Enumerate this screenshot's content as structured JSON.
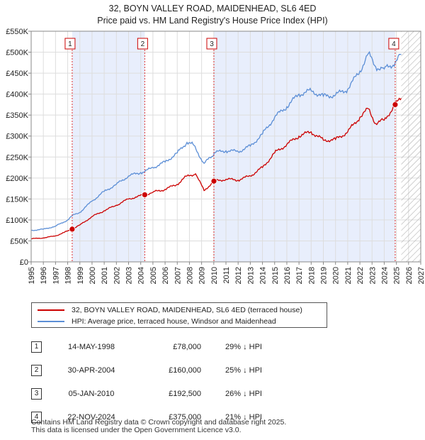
{
  "chart_data": {
    "type": "line",
    "title_line1": "32, BOYN VALLEY ROAD, MAIDENHEAD, SL6 4ED",
    "title_line2": "Price paid vs. HM Land Registry's House Price Index (HPI)",
    "xlim": [
      1995,
      2027
    ],
    "ylim": [
      0,
      550000
    ],
    "x_ticks": [
      1995,
      1996,
      1997,
      1998,
      1999,
      2000,
      2001,
      2002,
      2003,
      2004,
      2005,
      2006,
      2007,
      2008,
      2009,
      2010,
      2011,
      2012,
      2013,
      2014,
      2015,
      2016,
      2017,
      2018,
      2019,
      2020,
      2021,
      2022,
      2023,
      2024,
      2025,
      2026,
      2027
    ],
    "y_ticks": [
      {
        "value": 0,
        "label": "£0"
      },
      {
        "value": 50000,
        "label": "£50K"
      },
      {
        "value": 100000,
        "label": "£100K"
      },
      {
        "value": 150000,
        "label": "£150K"
      },
      {
        "value": 200000,
        "label": "£200K"
      },
      {
        "value": 250000,
        "label": "£250K"
      },
      {
        "value": 300000,
        "label": "£300K"
      },
      {
        "value": 350000,
        "label": "£350K"
      },
      {
        "value": 400000,
        "label": "£400K"
      },
      {
        "value": 450000,
        "label": "£450K"
      },
      {
        "value": 500000,
        "label": "£500K"
      },
      {
        "value": 550000,
        "label": "£550K"
      }
    ],
    "future_hatch_start": 2025.4,
    "shaded_bands": [
      [
        1998.37,
        2004.33
      ],
      [
        2010.01,
        2024.9
      ]
    ],
    "series": [
      {
        "name": "32, BOYN VALLEY ROAD, MAIDENHEAD, SL6 4ED (terraced house)",
        "color": "#cc0000",
        "x": [
          1995,
          1996,
          1997,
          1997.7,
          1998.37,
          1999,
          2000,
          2001,
          2002,
          2003,
          2004.33,
          2005,
          2006,
          2007,
          2007.8,
          2008.5,
          2009.2,
          2010.01,
          2011,
          2012,
          2013,
          2014,
          2015,
          2016,
          2017,
          2018,
          2019,
          2020,
          2021,
          2022,
          2022.7,
          2023.3,
          2024,
          2024.9,
          2025.4
        ],
        "y": [
          55000,
          57000,
          62000,
          70000,
          78000,
          88000,
          108000,
          122000,
          135000,
          150000,
          160000,
          166000,
          173000,
          185000,
          205000,
          210000,
          170000,
          192500,
          197000,
          195000,
          205000,
          225000,
          260000,
          280000,
          300000,
          310000,
          290000,
          292000,
          310000,
          345000,
          365000,
          330000,
          338000,
          375000,
          390000
        ]
      },
      {
        "name": "HPI: Average price, terraced house, Windsor and Maidenhead",
        "color": "#5b8ed6",
        "x": [
          1995,
          1996,
          1997,
          1998,
          1998.37,
          1999,
          2000,
          2001,
          2002,
          2003,
          2004,
          2004.33,
          2005,
          2006,
          2007,
          2007.8,
          2008.3,
          2009.2,
          2010,
          2010.01,
          2011,
          2012,
          2013,
          2014,
          2015,
          2016,
          2017,
          2018,
          2019,
          2020,
          2021,
          2022,
          2022.7,
          2023.3,
          2024,
          2024.9,
          2025.4
        ],
        "y": [
          75000,
          78000,
          85000,
          100000,
          110000,
          118000,
          145000,
          168000,
          185000,
          205000,
          213000,
          215000,
          225000,
          238000,
          260000,
          285000,
          280000,
          235000,
          255000,
          260000,
          265000,
          263000,
          276000,
          305000,
          345000,
          370000,
          400000,
          408000,
          395000,
          398000,
          412000,
          455000,
          497000,
          465000,
          460000,
          475000,
          495000
        ]
      }
    ],
    "sales": [
      {
        "num": "1",
        "x": 1998.37,
        "y": 78000,
        "date": "14-MAY-1998",
        "price": "£78,000",
        "hpi": "29% ↓ HPI"
      },
      {
        "num": "2",
        "x": 2004.33,
        "y": 160000,
        "date": "30-APR-2004",
        "price": "£160,000",
        "hpi": "25% ↓ HPI"
      },
      {
        "num": "3",
        "x": 2010.01,
        "y": 192500,
        "date": "05-JAN-2010",
        "price": "£192,500",
        "hpi": "26% ↓ HPI"
      },
      {
        "num": "4",
        "x": 2024.9,
        "y": 375000,
        "date": "22-NOV-2024",
        "price": "£375,000",
        "hpi": "21% ↓ HPI"
      }
    ]
  },
  "legend": {
    "red_label": "32, BOYN VALLEY ROAD, MAIDENHEAD, SL6 4ED (terraced house)",
    "blue_label": "HPI: Average price, terraced house, Windsor and Maidenhead",
    "red_color": "#cc0000",
    "blue_color": "#5b8ed6"
  },
  "footer": {
    "line1": "Contains HM Land Registry data © Crown copyright and database right 2025.",
    "line2": "This data is licensed under the Open Government Licence v3.0."
  }
}
